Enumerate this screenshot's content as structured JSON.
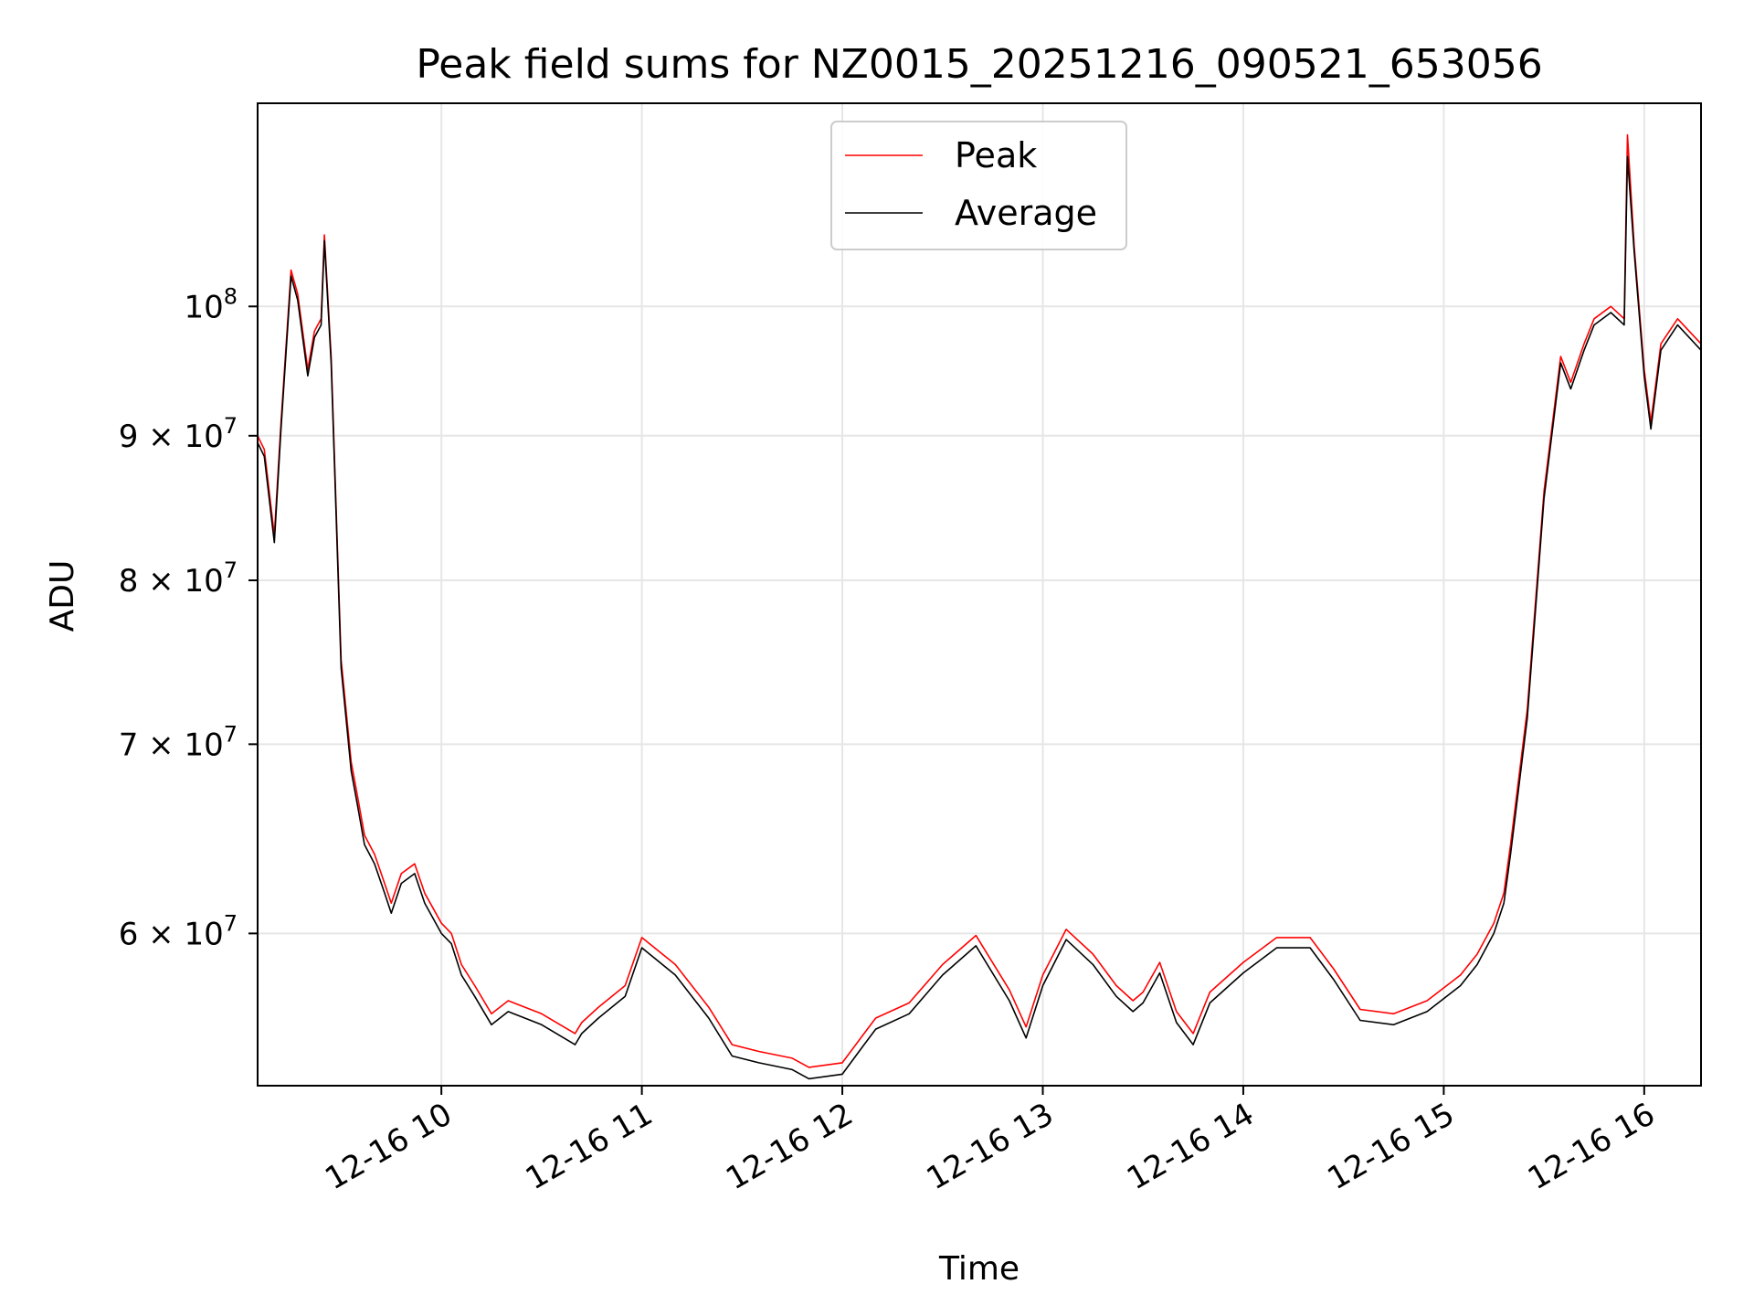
{
  "chart_data": {
    "type": "line",
    "title": "Peak field sums for NZ0015_20251216_090521_653056",
    "xlabel": "Time",
    "ylabel": "ADU",
    "y_scale": "log",
    "ylim": [
      53000000,
      118000000
    ],
    "xlim": [
      "2025-12-16 09:05",
      "2025-12-16 16:17"
    ],
    "grid": true,
    "legend_position": "upper center",
    "x_ticks": [
      {
        "value": "2025-12-16 10:00",
        "label": "12-16 10"
      },
      {
        "value": "2025-12-16 11:00",
        "label": "12-16 11"
      },
      {
        "value": "2025-12-16 12:00",
        "label": "12-16 12"
      },
      {
        "value": "2025-12-16 13:00",
        "label": "12-16 13"
      },
      {
        "value": "2025-12-16 14:00",
        "label": "12-16 14"
      },
      {
        "value": "2025-12-16 15:00",
        "label": "12-16 15"
      },
      {
        "value": "2025-12-16 16:00",
        "label": "12-16 16"
      }
    ],
    "y_ticks": [
      {
        "value": 60000000,
        "mantissa": "6",
        "base": "10",
        "exp": "7"
      },
      {
        "value": 70000000,
        "mantissa": "7",
        "base": "10",
        "exp": "7"
      },
      {
        "value": 80000000,
        "mantissa": "8",
        "base": "10",
        "exp": "7"
      },
      {
        "value": 90000000,
        "mantissa": "9",
        "base": "10",
        "exp": "7"
      },
      {
        "value": 100000000,
        "mantissa": "",
        "base": "10",
        "exp": "8"
      }
    ],
    "x": [
      "2025-12-16 09:05",
      "2025-12-16 09:07",
      "2025-12-16 09:10",
      "2025-12-16 09:12",
      "2025-12-16 09:15",
      "2025-12-16 09:17",
      "2025-12-16 09:20",
      "2025-12-16 09:22",
      "2025-12-16 09:24",
      "2025-12-16 09:25",
      "2025-12-16 09:27",
      "2025-12-16 09:30",
      "2025-12-16 09:33",
      "2025-12-16 09:35",
      "2025-12-16 09:37",
      "2025-12-16 09:40",
      "2025-12-16 09:43",
      "2025-12-16 09:45",
      "2025-12-16 09:48",
      "2025-12-16 09:52",
      "2025-12-16 09:55",
      "2025-12-16 10:00",
      "2025-12-16 10:03",
      "2025-12-16 10:06",
      "2025-12-16 10:10",
      "2025-12-16 10:15",
      "2025-12-16 10:20",
      "2025-12-16 10:30",
      "2025-12-16 10:40",
      "2025-12-16 10:42",
      "2025-12-16 10:47",
      "2025-12-16 10:55",
      "2025-12-16 11:00",
      "2025-12-16 11:10",
      "2025-12-16 11:20",
      "2025-12-16 11:27",
      "2025-12-16 11:35",
      "2025-12-16 11:45",
      "2025-12-16 11:50",
      "2025-12-16 12:00",
      "2025-12-16 12:06",
      "2025-12-16 12:10",
      "2025-12-16 12:20",
      "2025-12-16 12:30",
      "2025-12-16 12:40",
      "2025-12-16 12:50",
      "2025-12-16 12:55",
      "2025-12-16 13:00",
      "2025-12-16 13:07",
      "2025-12-16 13:15",
      "2025-12-16 13:22",
      "2025-12-16 13:27",
      "2025-12-16 13:30",
      "2025-12-16 13:35",
      "2025-12-16 13:40",
      "2025-12-16 13:45",
      "2025-12-16 13:50",
      "2025-12-16 14:00",
      "2025-12-16 14:10",
      "2025-12-16 14:20",
      "2025-12-16 14:27",
      "2025-12-16 14:35",
      "2025-12-16 14:45",
      "2025-12-16 14:55",
      "2025-12-16 15:05",
      "2025-12-16 15:10",
      "2025-12-16 15:15",
      "2025-12-16 15:18",
      "2025-12-16 15:20",
      "2025-12-16 15:25",
      "2025-12-16 15:30",
      "2025-12-16 15:35",
      "2025-12-16 15:38",
      "2025-12-16 15:42",
      "2025-12-16 15:45",
      "2025-12-16 15:50",
      "2025-12-16 15:54",
      "2025-12-16 15:55",
      "2025-12-16 15:57",
      "2025-12-16 16:00",
      "2025-12-16 16:02",
      "2025-12-16 16:05",
      "2025-12-16 16:10",
      "2025-12-16 16:17"
    ],
    "series": [
      {
        "name": "Peak",
        "color": "#ff0000",
        "values": [
          90000000,
          89000000,
          83000000,
          91000000,
          103000000,
          101000000,
          95000000,
          98000000,
          99000000,
          106000000,
          96000000,
          75000000,
          69000000,
          67000000,
          65000000,
          64000000,
          62500000,
          61500000,
          63000000,
          63500000,
          62000000,
          60500000,
          60000000,
          58500000,
          57500000,
          56200000,
          56800000,
          56200000,
          55300000,
          55800000,
          56500000,
          57500000,
          59800000,
          58500000,
          56500000,
          54800000,
          54500000,
          54200000,
          53800000,
          54000000,
          55200000,
          56000000,
          56700000,
          58500000,
          59900000,
          57300000,
          55600000,
          58000000,
          60200000,
          59000000,
          57500000,
          56800000,
          57200000,
          58600000,
          56300000,
          55300000,
          57200000,
          58600000,
          59800000,
          59800000,
          58300000,
          56400000,
          56200000,
          56800000,
          58000000,
          59000000,
          60500000,
          62000000,
          64500000,
          72000000,
          86000000,
          96000000,
          94000000,
          97000000,
          99000000,
          100000000,
          99000000,
          115000000,
          105000000,
          95000000,
          91000000,
          97000000,
          99000000,
          97000000
        ]
      },
      {
        "name": "Average",
        "color": "#000000",
        "values": [
          89500000,
          88500000,
          82500000,
          90500000,
          102500000,
          100500000,
          94500000,
          97500000,
          98500000,
          105500000,
          95500000,
          74500000,
          68500000,
          66500000,
          64500000,
          63500000,
          62000000,
          61000000,
          62500000,
          63000000,
          61500000,
          60000000,
          59500000,
          58000000,
          57000000,
          55700000,
          56300000,
          55700000,
          54800000,
          55300000,
          56000000,
          57000000,
          59300000,
          58000000,
          56000000,
          54300000,
          54000000,
          53700000,
          53300000,
          53500000,
          54700000,
          55500000,
          56200000,
          58000000,
          59400000,
          56800000,
          55100000,
          57500000,
          59700000,
          58500000,
          57000000,
          56300000,
          56700000,
          58100000,
          55800000,
          54800000,
          56700000,
          58100000,
          59300000,
          59300000,
          57800000,
          55900000,
          55700000,
          56300000,
          57500000,
          58500000,
          60000000,
          61500000,
          64000000,
          71500000,
          85500000,
          95500000,
          93500000,
          96500000,
          98500000,
          99500000,
          98500000,
          113000000,
          104500000,
          94500000,
          90500000,
          96500000,
          98500000,
          96500000
        ]
      }
    ]
  }
}
